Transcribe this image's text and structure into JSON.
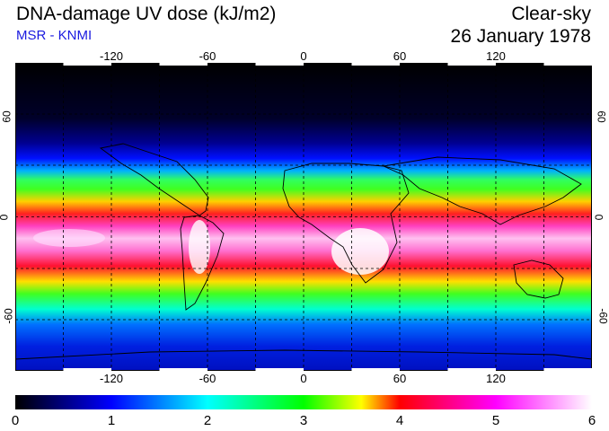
{
  "header": {
    "title": "DNA-damage UV dose (kJ/m2)",
    "subtitle": "MSR - KNMI",
    "mode": "Clear-sky",
    "date": "26 January 1978"
  },
  "map": {
    "lon_ticks": [
      "-120",
      "-60",
      "0",
      "60",
      "120"
    ],
    "lat_ticks": [
      "60",
      "0",
      "-60"
    ],
    "lon_range": [
      -180,
      180
    ],
    "lat_range": [
      -90,
      90
    ],
    "grid": "dashed every 30 degrees"
  },
  "colorbar": {
    "labels": [
      "0",
      "1",
      "2",
      "3",
      "4",
      "5",
      "6"
    ],
    "min": 0,
    "max": 6,
    "colors": [
      "#000000",
      "#0000ff",
      "#00ffff",
      "#00ff00",
      "#ffff00",
      "#ff0000",
      "#ff00ff",
      "#ffffff"
    ]
  }
}
